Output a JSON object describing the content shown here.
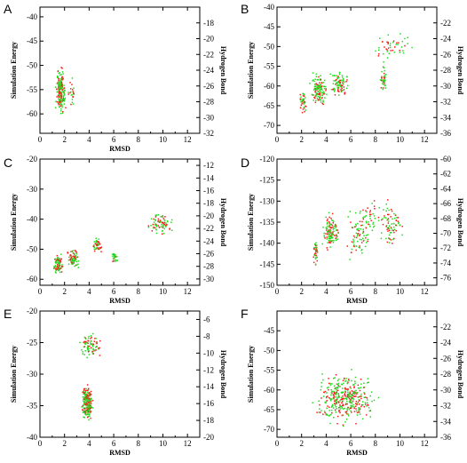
{
  "figure": {
    "colors": {
      "energy": "#ff1a1a",
      "hbond": "#22dd22"
    }
  },
  "chart_data": [
    {
      "panel": "A",
      "type": "scatter",
      "xlabel": "RMSD",
      "ylabel": "Simulation Energy",
      "y2label": "Hydrogen Bond",
      "xlim": [
        0,
        13
      ],
      "ylim": [
        -64,
        -38
      ],
      "y2lim": [
        -32,
        -16
      ],
      "xticks": [
        0,
        2,
        4,
        6,
        8,
        10,
        12
      ],
      "yticks": [
        -60,
        -55,
        -50,
        -45,
        -40
      ],
      "y2ticks": [
        -32,
        -30,
        -28,
        -26,
        -24,
        -22,
        -20,
        -18
      ],
      "clusters": [
        {
          "x": [
            1.2,
            2.2
          ],
          "y": [
            -61,
            -50
          ],
          "n": 200
        },
        {
          "x": [
            2.2,
            3.0
          ],
          "y": [
            -59,
            -52
          ],
          "n": 25
        }
      ]
    },
    {
      "panel": "B",
      "type": "scatter",
      "xlabel": "",
      "ylabel": "Simulation Energy",
      "y2label": "Hydrogen Bond",
      "xlim": [
        0,
        13
      ],
      "ylim": [
        -72,
        -40
      ],
      "y2lim": [
        -36,
        -20
      ],
      "xticks": [
        0,
        2,
        4,
        6,
        8,
        10,
        12
      ],
      "yticks": [
        -70,
        -65,
        -60,
        -55,
        -50,
        -45,
        -40
      ],
      "y2ticks": [
        -36,
        -34,
        -32,
        -30,
        -28,
        -26,
        -24,
        -22
      ],
      "clusters": [
        {
          "x": [
            1.7,
            2.5
          ],
          "y": [
            -68,
            -60
          ],
          "n": 40
        },
        {
          "x": [
            2.5,
            4.2
          ],
          "y": [
            -66,
            -56
          ],
          "n": 140
        },
        {
          "x": [
            4.2,
            6.0
          ],
          "y": [
            -64,
            -55
          ],
          "n": 90
        },
        {
          "x": [
            8.3,
            9.0
          ],
          "y": [
            -64,
            -52
          ],
          "n": 45
        },
        {
          "x": [
            7.5,
            11.5
          ],
          "y": [
            -54,
            -46
          ],
          "n": 45
        }
      ]
    },
    {
      "panel": "C",
      "type": "scatter",
      "xlabel": "RMSD",
      "ylabel": "Simulation Energy",
      "y2label": "Hydrogen Bond",
      "xlim": [
        0,
        13
      ],
      "ylim": [
        -62,
        -20
      ],
      "y2lim": [
        -31,
        -11
      ],
      "xticks": [
        0,
        2,
        4,
        6,
        8,
        10,
        12
      ],
      "yticks": [
        -60,
        -50,
        -40,
        -30,
        -20
      ],
      "y2ticks": [
        -30,
        -28,
        -26,
        -24,
        -22,
        -20,
        -18,
        -16,
        -14,
        -12
      ],
      "clusters": [
        {
          "x": [
            1.0,
            2.0
          ],
          "y": [
            -59,
            -51
          ],
          "n": 90
        },
        {
          "x": [
            2.0,
            3.4
          ],
          "y": [
            -57,
            -49
          ],
          "n": 70
        },
        {
          "x": [
            4.2,
            5.1
          ],
          "y": [
            -52,
            -45
          ],
          "n": 45
        },
        {
          "x": [
            5.8,
            6.4
          ],
          "y": [
            -55,
            -50
          ],
          "n": 25
        },
        {
          "x": [
            8.5,
            11.0
          ],
          "y": [
            -46,
            -37
          ],
          "n": 80
        }
      ]
    },
    {
      "panel": "D",
      "type": "scatter",
      "xlabel": "RMSD",
      "ylabel": "Simulation Energy",
      "y2label": "Hydrogen Bond",
      "xlim": [
        0,
        13
      ],
      "ylim": [
        -150,
        -120
      ],
      "y2lim": [
        -77,
        -60
      ],
      "xticks": [
        0,
        2,
        4,
        6,
        8,
        10,
        12
      ],
      "yticks": [
        -150,
        -145,
        -140,
        -135,
        -130,
        -125,
        -120
      ],
      "y2ticks": [
        -76,
        -74,
        -72,
        -70,
        -68,
        -66,
        -64,
        -62,
        -60
      ],
      "clusters": [
        {
          "x": [
            2.9,
            3.4
          ],
          "y": [
            -146,
            -138
          ],
          "n": 40
        },
        {
          "x": [
            3.6,
            5.2
          ],
          "y": [
            -142,
            -132
          ],
          "n": 120
        },
        {
          "x": [
            5.2,
            8.0
          ],
          "y": [
            -146,
            -130
          ],
          "n": 80
        },
        {
          "x": [
            8.0,
            10.5
          ],
          "y": [
            -143,
            -128
          ],
          "n": 80
        },
        {
          "x": [
            6.5,
            8.5
          ],
          "y": [
            -138,
            -128
          ],
          "n": 30
        }
      ]
    },
    {
      "panel": "E",
      "type": "scatter",
      "xlabel": "RMSD",
      "ylabel": "Simulation Energy",
      "y2label": "Hydrogen Bond",
      "xlim": [
        0,
        13
      ],
      "ylim": [
        -40,
        -20
      ],
      "y2lim": [
        -20,
        -5
      ],
      "xticks": [
        0,
        2,
        4,
        6,
        8,
        10,
        12
      ],
      "yticks": [
        -40,
        -35,
        -30,
        -25,
        -20
      ],
      "y2ticks": [
        -20,
        -18,
        -16,
        -14,
        -12,
        -10,
        -8,
        -6
      ],
      "clusters": [
        {
          "x": [
            3.3,
            4.4
          ],
          "y": [
            -38,
            -31
          ],
          "n": 220
        },
        {
          "x": [
            3.0,
            5.2
          ],
          "y": [
            -28,
            -23
          ],
          "n": 80
        }
      ]
    },
    {
      "panel": "F",
      "type": "scatter",
      "xlabel": "RMSD",
      "ylabel": "Simulation Energy",
      "y2label": "Hydrogen Bond",
      "xlim": [
        0,
        13
      ],
      "ylim": [
        -72,
        -40
      ],
      "y2lim": [
        -36,
        -20
      ],
      "xticks": [
        0,
        2,
        4,
        6,
        8,
        10,
        12
      ],
      "yticks": [
        -70,
        -65,
        -60,
        -55,
        -50,
        -45
      ],
      "y2ticks": [
        -36,
        -34,
        -32,
        -30,
        -28,
        -26,
        -24,
        -22
      ],
      "clusters": [
        {
          "x": [
            2.5,
            8.5
          ],
          "y": [
            -70,
            -54
          ],
          "n": 380
        }
      ]
    }
  ]
}
